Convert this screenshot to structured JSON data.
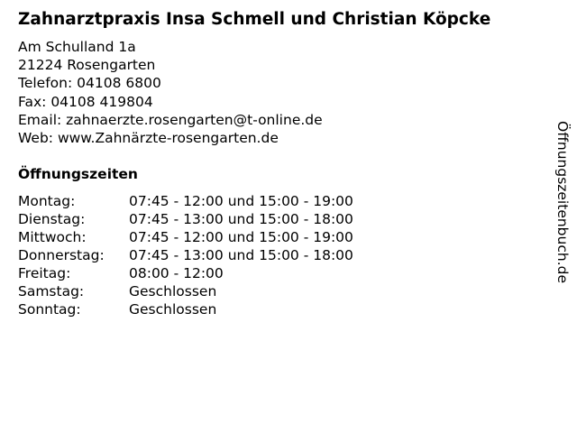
{
  "title": "Zahnarztpraxis Insa Schmell und Christian Köpcke",
  "address": {
    "street": "Am Schulland 1a",
    "city": "21224 Rosengarten",
    "phone": "Telefon: 04108 6800",
    "fax": "Fax: 04108 419804",
    "email": "Email: zahnaerzte.rosengarten@t-online.de",
    "web": "Web: www.Zahnärzte-rosengarten.de"
  },
  "hours_heading": "Öffnungszeiten",
  "hours": [
    {
      "day": "Montag:",
      "time": "07:45 - 12:00 und 15:00 - 19:00"
    },
    {
      "day": "Dienstag:",
      "time": "07:45 - 13:00 und 15:00 - 18:00"
    },
    {
      "day": "Mittwoch:",
      "time": "07:45 - 12:00 und 15:00 - 19:00"
    },
    {
      "day": "Donnerstag:",
      "time": "07:45 - 13:00 und 15:00 - 18:00"
    },
    {
      "day": "Freitag:",
      "time": "08:00 - 12:00"
    },
    {
      "day": "Samstag:",
      "time": "Geschlossen"
    },
    {
      "day": "Sonntag:",
      "time": "Geschlossen"
    }
  ],
  "watermark": "Öffnungszeitenbuch.de"
}
